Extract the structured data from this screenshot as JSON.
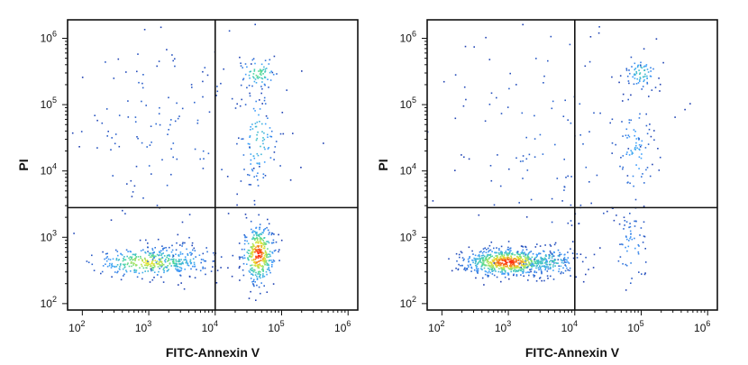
{
  "chart_data": [
    {
      "type": "scatter",
      "title": "",
      "xlabel": "FITC-Annexin V",
      "ylabel": "PI",
      "x_scale": "log",
      "y_scale": "log",
      "xlim": [
        60,
        1400000
      ],
      "ylim": [
        80,
        1900000
      ],
      "x_ticks": [
        {
          "value": 100,
          "base": "10",
          "exp": "2"
        },
        {
          "value": 1000,
          "base": "10",
          "exp": "3"
        },
        {
          "value": 10000,
          "base": "10",
          "exp": "4"
        },
        {
          "value": 100000,
          "base": "10",
          "exp": "5"
        },
        {
          "value": 1000000,
          "base": "10",
          "exp": "6"
        }
      ],
      "y_ticks": [
        {
          "value": 100,
          "base": "10",
          "exp": "2"
        },
        {
          "value": 1000,
          "base": "10",
          "exp": "3"
        },
        {
          "value": 10000,
          "base": "10",
          "exp": "4"
        },
        {
          "value": 100000,
          "base": "10",
          "exp": "5"
        },
        {
          "value": 1000000,
          "base": "10",
          "exp": "6"
        }
      ],
      "quadrant_gate": {
        "x": 10000,
        "y": 2800
      },
      "populations": [
        {
          "center": [
            1000,
            420
          ],
          "log_spread": [
            0.4,
            0.11
          ],
          "weight": 0.22,
          "peak_density": 0.75
        },
        {
          "center": [
            45000,
            550
          ],
          "log_spread": [
            0.12,
            0.22
          ],
          "weight": 0.24,
          "peak_density": 1.0
        },
        {
          "center": [
            45000,
            300000
          ],
          "log_spread": [
            0.15,
            0.12
          ],
          "weight": 0.05,
          "peak_density": 0.55
        },
        {
          "center": [
            45000,
            30000
          ],
          "log_spread": [
            0.15,
            0.4
          ],
          "weight": 0.06,
          "peak_density": 0.4
        },
        {
          "center": [
            3000,
            450
          ],
          "log_spread": [
            0.3,
            0.14
          ],
          "weight": 0.06,
          "peak_density": 0.4
        },
        {
          "center": [
            2000,
            40000
          ],
          "log_spread": [
            0.8,
            0.9
          ],
          "weight": 0.1,
          "peak_density": 0.1
        }
      ],
      "grid": false,
      "legend": "none"
    },
    {
      "type": "scatter",
      "title": "",
      "xlabel": "FITC-Annexin V",
      "ylabel": "PI",
      "x_scale": "log",
      "y_scale": "log",
      "xlim": [
        60,
        1400000
      ],
      "ylim": [
        80,
        1900000
      ],
      "x_ticks": [
        {
          "value": 100,
          "base": "10",
          "exp": "2"
        },
        {
          "value": 1000,
          "base": "10",
          "exp": "3"
        },
        {
          "value": 10000,
          "base": "10",
          "exp": "4"
        },
        {
          "value": 100000,
          "base": "10",
          "exp": "5"
        },
        {
          "value": 1000000,
          "base": "10",
          "exp": "6"
        }
      ],
      "y_ticks": [
        {
          "value": 100,
          "base": "10",
          "exp": "2"
        },
        {
          "value": 1000,
          "base": "10",
          "exp": "3"
        },
        {
          "value": 10000,
          "base": "10",
          "exp": "4"
        },
        {
          "value": 100000,
          "base": "10",
          "exp": "5"
        },
        {
          "value": 1000000,
          "base": "10",
          "exp": "6"
        }
      ],
      "quadrant_gate": {
        "x": 10000,
        "y": 2800
      },
      "populations": [
        {
          "center": [
            1000,
            420
          ],
          "log_spread": [
            0.33,
            0.1
          ],
          "weight": 0.45,
          "peak_density": 1.0
        },
        {
          "center": [
            4000,
            430
          ],
          "log_spread": [
            0.25,
            0.12
          ],
          "weight": 0.1,
          "peak_density": 0.45
        },
        {
          "center": [
            100000,
            300000
          ],
          "log_spread": [
            0.12,
            0.12
          ],
          "weight": 0.05,
          "peak_density": 0.45
        },
        {
          "center": [
            80000,
            20000
          ],
          "log_spread": [
            0.15,
            0.4
          ],
          "weight": 0.05,
          "peak_density": 0.3
        },
        {
          "center": [
            70000,
            700
          ],
          "log_spread": [
            0.12,
            0.3
          ],
          "weight": 0.04,
          "peak_density": 0.25
        },
        {
          "center": [
            4000,
            30000
          ],
          "log_spread": [
            0.8,
            0.9
          ],
          "weight": 0.09,
          "peak_density": 0.1
        }
      ],
      "grid": false,
      "legend": "none"
    }
  ],
  "colors": {
    "frame": "#111111",
    "density_scale": [
      "#1f3fb0",
      "#3fa0ff",
      "#44d6a0",
      "#e8e830",
      "#ff2a10"
    ]
  }
}
